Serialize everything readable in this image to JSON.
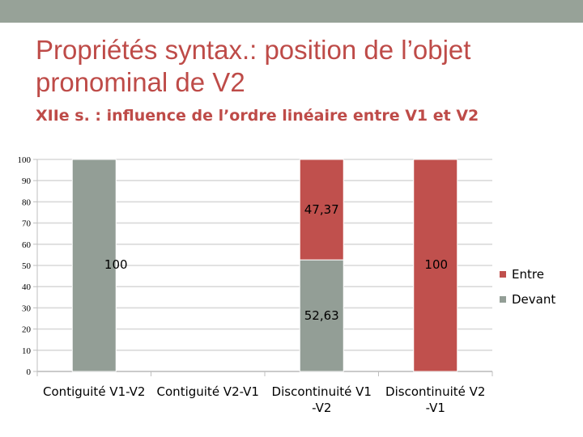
{
  "slide": {
    "title": "Propriétés syntax.: position de l’objet pronominal de V2",
    "subtitle": "XIIe s. : influence de l’ordre linéaire entre V1 et V2"
  },
  "colors": {
    "topbar": "#97a298",
    "title": "#be4b48",
    "devant": "#939e96",
    "entre": "#c0504d"
  },
  "chart_data": {
    "type": "bar",
    "stacked": true,
    "categories": [
      [
        "Contiguité V1-V2"
      ],
      [
        "Contiguité V2-V1"
      ],
      [
        "Discontinuité V1",
        "-V2"
      ],
      [
        "Discontinuité V2",
        "-V1"
      ]
    ],
    "series": [
      {
        "name": "Devant",
        "color": "#939e96",
        "values": [
          100,
          0,
          52.63,
          0
        ],
        "labels": [
          "100",
          "",
          "52,63",
          ""
        ]
      },
      {
        "name": "Entre",
        "color": "#c0504d",
        "values": [
          0,
          0,
          47.37,
          100
        ],
        "labels": [
          "",
          "",
          "47,37",
          "100"
        ]
      }
    ],
    "ylim": [
      0,
      100
    ],
    "yticks": [
      "0",
      "10",
      "20",
      "30",
      "40",
      "50",
      "60",
      "70",
      "80",
      "90",
      "100"
    ],
    "grid": true,
    "legend": "right"
  }
}
